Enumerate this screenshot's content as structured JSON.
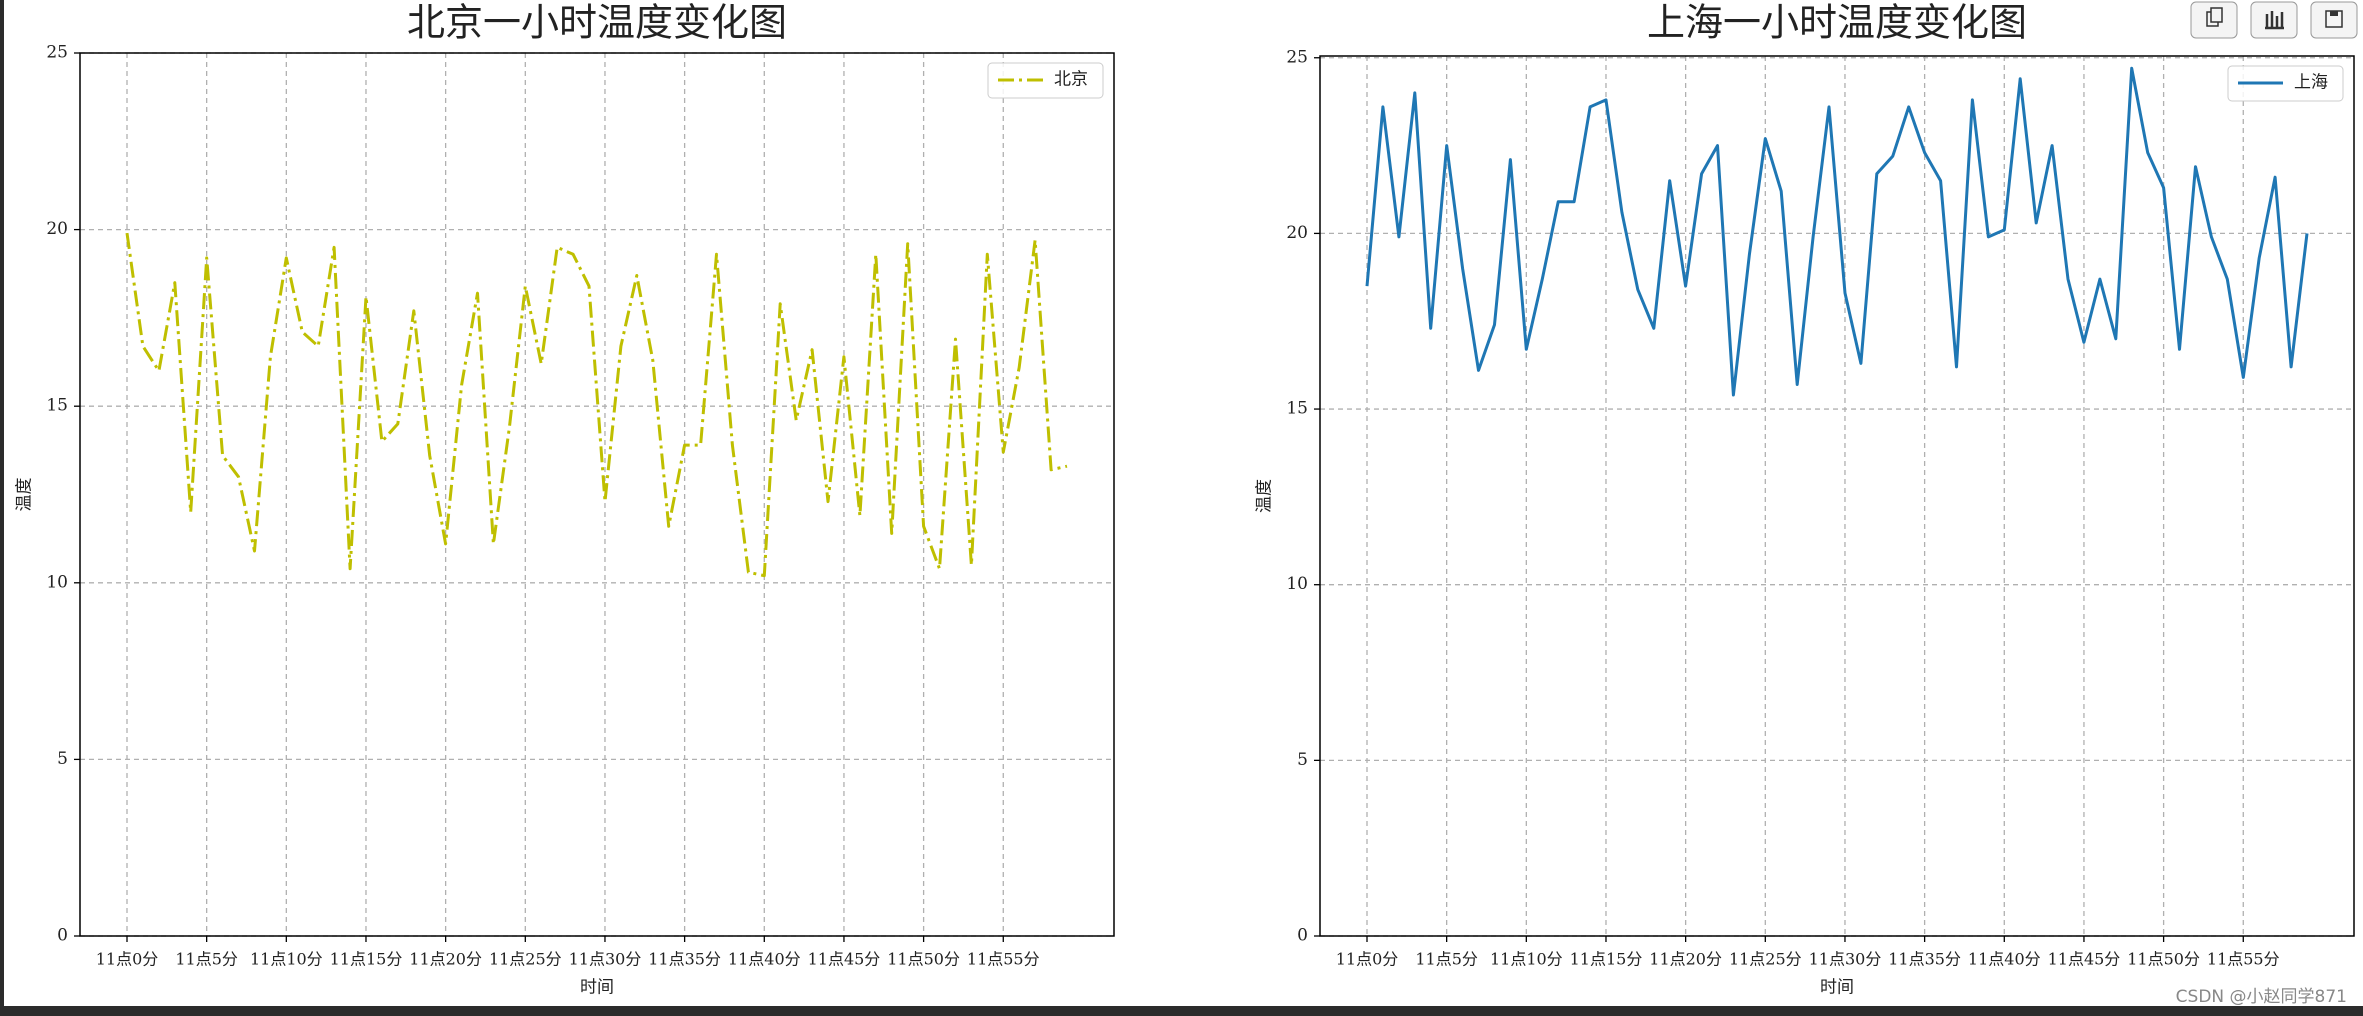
{
  "chart_data": [
    {
      "type": "line",
      "title": "北京一小时温度变化图",
      "xlabel": "时间",
      "ylabel": "温度",
      "categories": [
        "11点0分",
        null,
        null,
        null,
        null,
        "11点5分",
        null,
        null,
        null,
        null,
        "11点10分",
        null,
        null,
        null,
        null,
        "11点15分",
        null,
        null,
        null,
        null,
        "11点20分",
        null,
        null,
        null,
        null,
        "11点25分",
        null,
        null,
        null,
        null,
        "11点30分",
        null,
        null,
        null,
        null,
        "11点35分",
        null,
        null,
        null,
        null,
        "11点40分",
        null,
        null,
        null,
        null,
        "11点45分",
        null,
        null,
        null,
        null,
        "11点50分",
        null,
        null,
        null,
        null,
        "11点55分",
        null,
        null,
        null,
        null
      ],
      "series": [
        {
          "name": "北京",
          "color": "#bfbf00",
          "linestyle": "dashdot",
          "values": [
            19.9,
            16.7,
            16.0,
            18.5,
            12.0,
            19.2,
            13.6,
            13.0,
            10.9,
            16.4,
            19.2,
            17.1,
            16.7,
            19.5,
            10.4,
            18.1,
            14.0,
            14.5,
            17.7,
            13.6,
            11.1,
            15.6,
            18.2,
            11.1,
            14.4,
            18.4,
            16.2,
            19.5,
            19.3,
            18.4,
            12.3,
            16.7,
            18.7,
            16.3,
            11.6,
            13.9,
            13.9,
            19.3,
            13.9,
            10.3,
            10.2,
            17.9,
            14.6,
            16.6,
            12.3,
            16.4,
            11.9,
            19.3,
            11.4,
            19.6,
            11.6,
            10.4,
            16.9,
            10.5,
            19.3,
            13.7,
            16.1,
            19.7,
            13.2,
            13.3
          ]
        }
      ],
      "ylim": [
        0,
        25
      ],
      "yticks": [
        0,
        5,
        10,
        15,
        20,
        25
      ],
      "grid": true,
      "legend": "upper right"
    },
    {
      "type": "line",
      "title": "上海一小时温度变化图",
      "xlabel": "时间",
      "ylabel": "温度",
      "categories": [
        "11点0分",
        null,
        null,
        null,
        null,
        "11点5分",
        null,
        null,
        null,
        null,
        "11点10分",
        null,
        null,
        null,
        null,
        "11点15分",
        null,
        null,
        null,
        null,
        "11点20分",
        null,
        null,
        null,
        null,
        "11点25分",
        null,
        null,
        null,
        null,
        "11点30分",
        null,
        null,
        null,
        null,
        "11点35分",
        null,
        null,
        null,
        null,
        "11点40分",
        null,
        null,
        null,
        null,
        "11点45分",
        null,
        null,
        null,
        null,
        "11点50分",
        null,
        null,
        null,
        null,
        "11点55分",
        null,
        null,
        null,
        null
      ],
      "series": [
        {
          "name": "上海",
          "color": "#1f77b4",
          "linestyle": "solid",
          "values": [
            18.5,
            23.6,
            19.9,
            24.0,
            17.3,
            22.5,
            19.0,
            16.1,
            17.4,
            22.1,
            16.7,
            18.7,
            20.9,
            20.9,
            23.6,
            23.8,
            20.6,
            18.4,
            17.3,
            21.5,
            18.5,
            21.7,
            22.5,
            15.4,
            19.4,
            22.7,
            21.2,
            15.7,
            19.9,
            23.6,
            18.3,
            16.3,
            21.7,
            22.2,
            23.6,
            22.3,
            21.5,
            16.2,
            23.8,
            19.9,
            20.1,
            24.4,
            20.3,
            22.5,
            18.7,
            16.9,
            18.7,
            17.0,
            24.7,
            22.3,
            21.3,
            16.7,
            21.9,
            19.9,
            18.7,
            15.9,
            19.3,
            21.6,
            16.2,
            20.0
          ]
        }
      ],
      "ylim": [
        0,
        25.05
      ],
      "yticks": [
        0,
        5,
        10,
        15,
        20,
        25
      ],
      "grid": true,
      "legend": "upper right"
    }
  ],
  "watermark": "CSDN @小赵同学871"
}
